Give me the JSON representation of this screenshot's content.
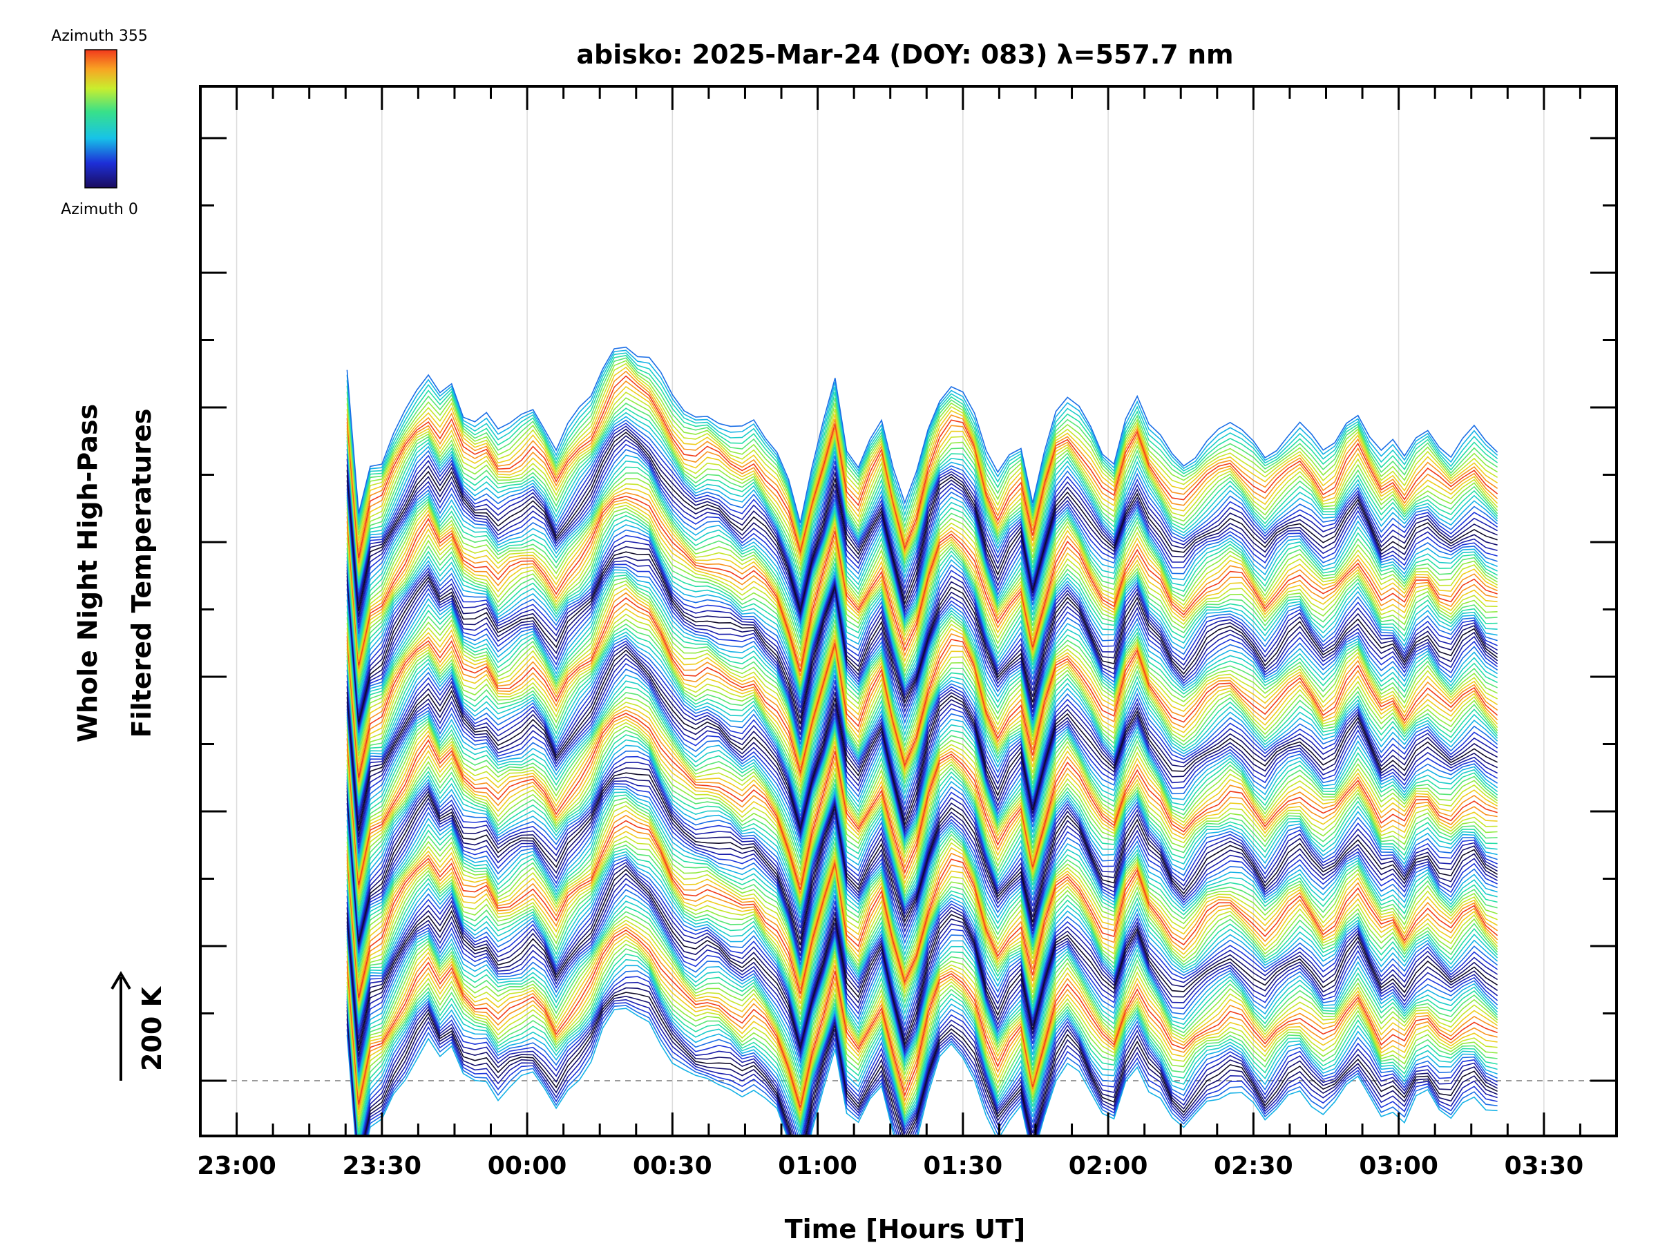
{
  "chart_data": {
    "type": "line",
    "title": "abisko: 2025-Mar-24 (DOY: 083) λ=557.7 nm",
    "xlabel": "Time [Hours UT]",
    "ylabel_line1": "Whole Night High-Pass",
    "ylabel_line2": "Filtered Temperatures",
    "scale_label": "200 K",
    "x_tick_labels": [
      "23:00",
      "23:30",
      "00:00",
      "00:30",
      "01:00",
      "01:30",
      "02:00",
      "02:30",
      "03:00",
      "03:30"
    ],
    "x_ticks_hours": [
      23.0,
      23.5,
      24.0,
      24.5,
      25.0,
      25.5,
      26.0,
      26.5,
      27.0,
      27.5
    ],
    "xlim_hours": [
      22.875,
      27.75
    ],
    "data_start_hours": 23.38,
    "data_end_hours": 27.34,
    "legend": {
      "top_label": "Azimuth 355",
      "bottom_label": "Azimuth 0",
      "colormap": "rainbow"
    },
    "series_count": 158,
    "series_offset_k": 200,
    "grid": "vertical-only",
    "baseline": "dashed",
    "profile_hours": [
      23.38,
      23.42,
      23.46,
      23.5,
      23.54,
      23.58,
      23.62,
      23.66,
      23.7,
      23.74,
      23.78,
      23.82,
      23.86,
      23.9,
      23.94,
      23.98,
      24.02,
      24.06,
      24.1,
      24.14,
      24.18,
      24.22,
      24.26,
      24.3,
      24.34,
      24.38,
      24.42,
      24.46,
      24.5,
      24.54,
      24.58,
      24.62,
      24.66,
      24.7,
      24.74,
      24.78,
      24.82,
      24.86,
      24.9,
      24.94,
      24.98,
      25.02,
      25.06,
      25.1,
      25.14,
      25.18,
      25.22,
      25.26,
      25.3,
      25.34,
      25.38,
      25.42,
      25.46,
      25.5,
      25.54,
      25.58,
      25.62,
      25.66,
      25.7,
      25.74,
      25.78,
      25.82,
      25.86,
      25.9,
      25.94,
      25.98,
      26.02,
      26.06,
      26.1,
      26.14,
      26.18,
      26.22,
      26.26,
      26.3,
      26.34,
      26.38,
      26.42,
      26.46,
      26.5,
      26.54,
      26.58,
      26.62,
      26.66,
      26.7,
      26.74,
      26.78,
      26.82,
      26.86,
      26.9,
      26.94,
      26.98,
      27.02,
      27.06,
      27.1,
      27.14,
      27.18,
      27.22,
      27.26,
      27.3,
      27.34
    ],
    "profile_k": [
      95,
      -120,
      -40,
      -30,
      10,
      40,
      70,
      90,
      60,
      80,
      40,
      30,
      35,
      10,
      20,
      30,
      40,
      20,
      -10,
      20,
      40,
      60,
      100,
      130,
      140,
      130,
      120,
      90,
      60,
      40,
      30,
      35,
      30,
      20,
      10,
      20,
      0,
      -20,
      -60,
      -120,
      -40,
      20,
      80,
      -20,
      -40,
      0,
      30,
      -40,
      -100,
      -60,
      10,
      60,
      80,
      70,
      40,
      -20,
      -60,
      -30,
      -10,
      -90,
      -20,
      40,
      60,
      40,
      10,
      -20,
      -30,
      30,
      60,
      20,
      0,
      -30,
      -40,
      -20,
      0,
      10,
      20,
      10,
      -10,
      -30,
      -10,
      10,
      20,
      0,
      -20,
      -10,
      20,
      40,
      10,
      -20,
      -10,
      -30,
      0,
      10,
      -10,
      -20,
      0,
      10,
      -10,
      -20
    ]
  }
}
